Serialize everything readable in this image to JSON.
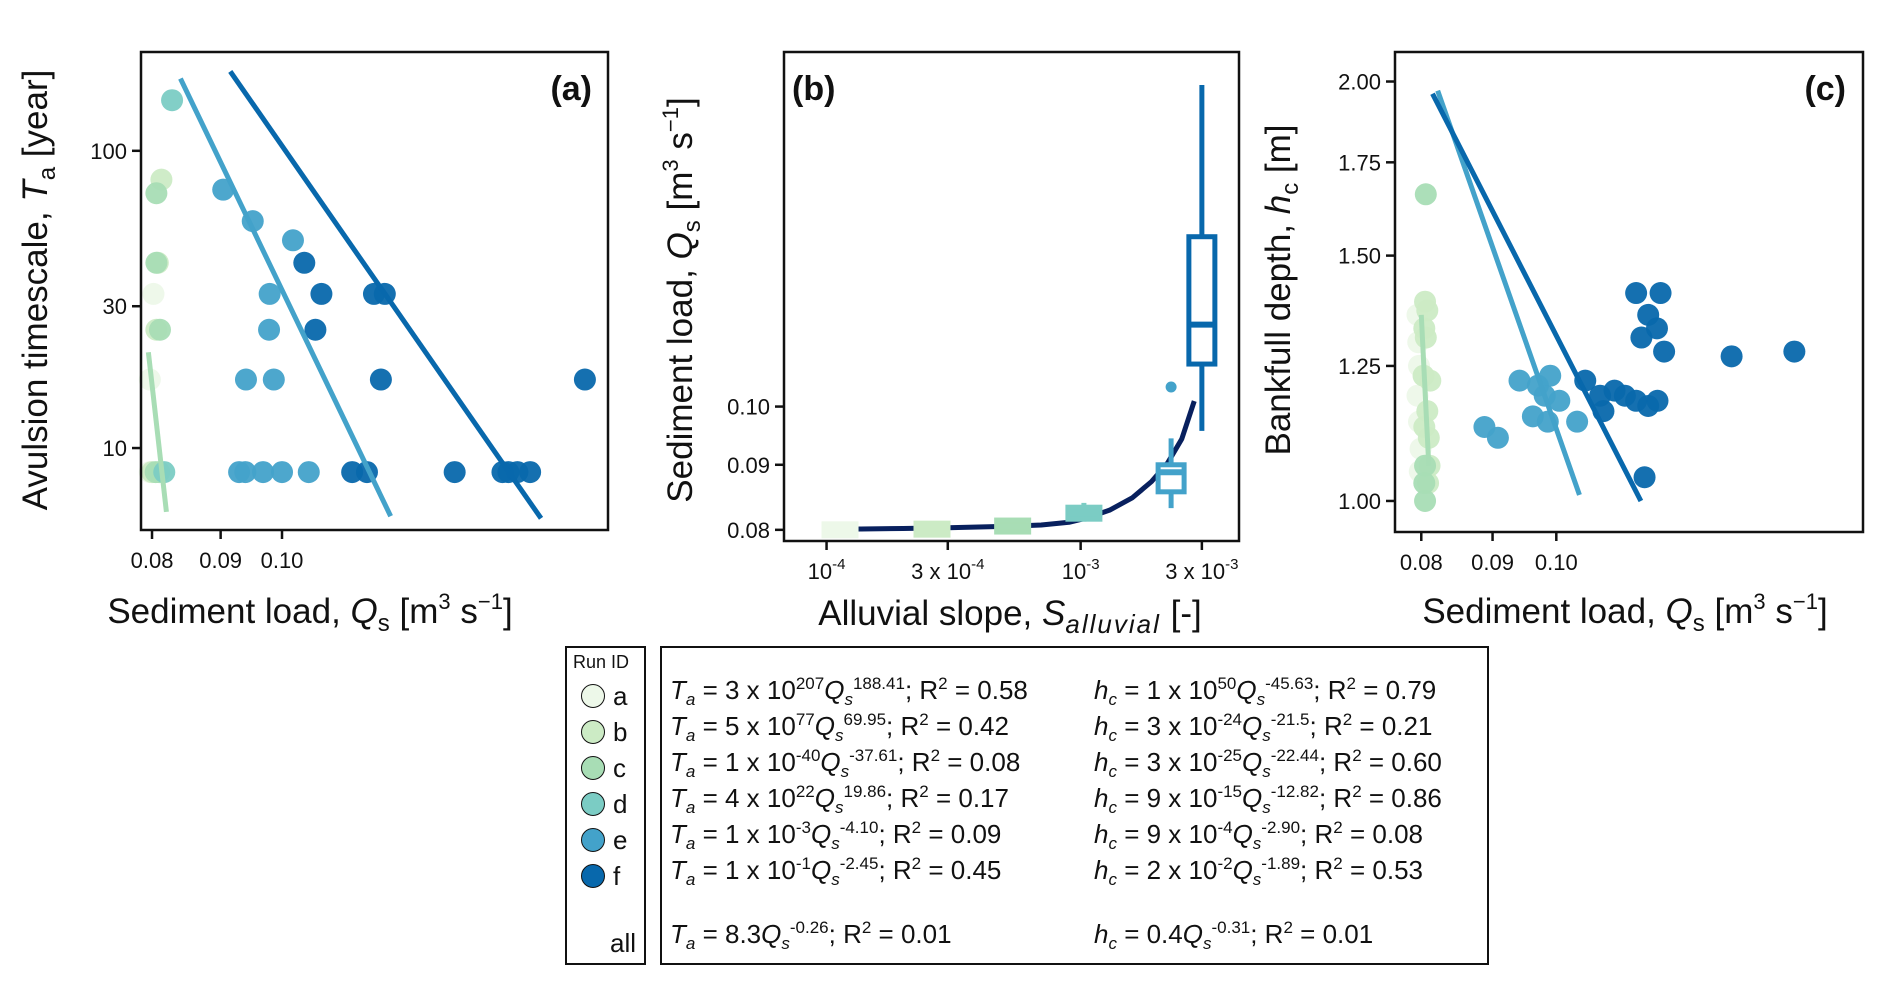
{
  "run_colors": {
    "a": "#edf8e9",
    "b": "#ccebc5",
    "c": "#a8ddb5",
    "d": "#7bccc4",
    "e": "#43a2ca",
    "f": "#0868ac",
    "fit_all": "#08205e"
  },
  "legend": {
    "title": "Run ID",
    "runs": [
      "a",
      "b",
      "c",
      "d",
      "e",
      "f"
    ],
    "all_label": "all"
  },
  "equations": {
    "Ta": [
      {
        "run": "a",
        "lhs": "T",
        "lhs_sub": "a",
        "coef": "3 x 10",
        "coef_exp": "207",
        "exp": "188.41",
        "r2": "0.58"
      },
      {
        "run": "b",
        "lhs": "T",
        "lhs_sub": "a",
        "coef": "5 x 10",
        "coef_exp": "77",
        "exp": "69.95",
        "r2": "0.42"
      },
      {
        "run": "c",
        "lhs": "T",
        "lhs_sub": "a",
        "coef": "1 x 10",
        "coef_exp": "-40",
        "exp": "-37.61",
        "r2": "0.08"
      },
      {
        "run": "d",
        "lhs": "T",
        "lhs_sub": "a",
        "coef": "4 x 10",
        "coef_exp": "22",
        "exp": "19.86",
        "r2": "0.17"
      },
      {
        "run": "e",
        "lhs": "T",
        "lhs_sub": "a",
        "coef": "1 x 10",
        "coef_exp": "-3",
        "exp": "-4.10",
        "r2": "0.09"
      },
      {
        "run": "f",
        "lhs": "T",
        "lhs_sub": "a",
        "coef": "1 x 10",
        "coef_exp": "-1",
        "exp": "-2.45",
        "r2": "0.45"
      },
      {
        "run": "all",
        "lhs": "T",
        "lhs_sub": "a",
        "coef": "8.3",
        "coef_exp": "",
        "exp": "-0.26",
        "r2": "0.01"
      }
    ],
    "hc": [
      {
        "run": "a",
        "lhs": "h",
        "lhs_sub": "c",
        "coef": "1 x 10",
        "coef_exp": "50",
        "exp": "-45.63",
        "r2": "0.79"
      },
      {
        "run": "b",
        "lhs": "h",
        "lhs_sub": "c",
        "coef": "3 x 10",
        "coef_exp": "-24",
        "exp": "-21.5",
        "r2": "0.21"
      },
      {
        "run": "c",
        "lhs": "h",
        "lhs_sub": "c",
        "coef": "3 x 10",
        "coef_exp": "-25",
        "exp": "-22.44",
        "r2": "0.60"
      },
      {
        "run": "d",
        "lhs": "h",
        "lhs_sub": "c",
        "coef": "9 x 10",
        "coef_exp": "-15",
        "exp": "-12.82",
        "r2": "0.86"
      },
      {
        "run": "e",
        "lhs": "h",
        "lhs_sub": "c",
        "coef": "9 x 10",
        "coef_exp": "-4",
        "exp": "-2.90",
        "r2": "0.08"
      },
      {
        "run": "f",
        "lhs": "h",
        "lhs_sub": "c",
        "coef": "2 x 10",
        "coef_exp": "-2",
        "exp": "-1.89",
        "r2": "0.53"
      },
      {
        "run": "all",
        "lhs": "h",
        "lhs_sub": "c",
        "coef": "0.4",
        "coef_exp": "",
        "exp": "-0.31",
        "r2": "0.01"
      }
    ],
    "q_symbol": "Q",
    "q_sub": "s",
    "r2_label": "R",
    "r2_exp": "2"
  },
  "chart_data": [
    {
      "panel": "(a)",
      "type": "scatter",
      "xlabel": "Sediment load, Q_s [m^3 s^-1]",
      "ylabel": "Avulsion timescale, T_a [year]",
      "xscale": "log",
      "yscale": "log",
      "xlim": [
        0.0785,
        0.175
      ],
      "ylim": [
        5.3,
        215
      ],
      "xticks": [
        0.08,
        0.09,
        0.1
      ],
      "xticklabels": [
        "0.08",
        "0.09",
        "0.10"
      ],
      "yticks": [
        10,
        30,
        100
      ],
      "yticklabels": [
        "10",
        "30",
        "100"
      ],
      "points": [
        {
          "run": "a",
          "x": 0.0802,
          "y": 33
        },
        {
          "run": "a",
          "x": 0.0797,
          "y": 17
        },
        {
          "run": "a",
          "x": 0.0797,
          "y": 8.3
        },
        {
          "run": "b",
          "x": 0.0813,
          "y": 80
        },
        {
          "run": "b",
          "x": 0.0806,
          "y": 25
        },
        {
          "run": "b",
          "x": 0.08,
          "y": 8.3
        },
        {
          "run": "b",
          "x": 0.0808,
          "y": 42
        },
        {
          "run": "c",
          "x": 0.0806,
          "y": 72
        },
        {
          "run": "c",
          "x": 0.0806,
          "y": 42
        },
        {
          "run": "c",
          "x": 0.0811,
          "y": 25
        },
        {
          "run": "c",
          "x": 0.0805,
          "y": 8.3
        },
        {
          "run": "c",
          "x": 0.081,
          "y": 8.3
        },
        {
          "run": "d",
          "x": 0.0828,
          "y": 148
        },
        {
          "run": "d",
          "x": 0.0817,
          "y": 8.3
        },
        {
          "run": "e",
          "x": 0.0904,
          "y": 74
        },
        {
          "run": "e",
          "x": 0.0951,
          "y": 58
        },
        {
          "run": "e",
          "x": 0.1019,
          "y": 50
        },
        {
          "run": "e",
          "x": 0.0979,
          "y": 33
        },
        {
          "run": "e",
          "x": 0.0978,
          "y": 25
        },
        {
          "run": "e",
          "x": 0.094,
          "y": 17
        },
        {
          "run": "e",
          "x": 0.0986,
          "y": 17
        },
        {
          "run": "e",
          "x": 0.0929,
          "y": 8.3
        },
        {
          "run": "e",
          "x": 0.0939,
          "y": 8.3
        },
        {
          "run": "e",
          "x": 0.0968,
          "y": 8.3
        },
        {
          "run": "e",
          "x": 0.1,
          "y": 8.3
        },
        {
          "run": "e",
          "x": 0.1047,
          "y": 8.3
        },
        {
          "run": "f",
          "x": 0.1039,
          "y": 42
        },
        {
          "run": "f",
          "x": 0.107,
          "y": 33
        },
        {
          "run": "f",
          "x": 0.1171,
          "y": 33
        },
        {
          "run": "f",
          "x": 0.1193,
          "y": 33
        },
        {
          "run": "f",
          "x": 0.1059,
          "y": 25
        },
        {
          "run": "f",
          "x": 0.1185,
          "y": 17
        },
        {
          "run": "f",
          "x": 0.1682,
          "y": 17
        },
        {
          "run": "f",
          "x": 0.1128,
          "y": 8.3
        },
        {
          "run": "f",
          "x": 0.1157,
          "y": 8.3
        },
        {
          "run": "f",
          "x": 0.1345,
          "y": 8.3
        },
        {
          "run": "f",
          "x": 0.146,
          "y": 8.3
        },
        {
          "run": "f",
          "x": 0.1475,
          "y": 8.3
        },
        {
          "run": "f",
          "x": 0.1498,
          "y": 8.3
        },
        {
          "run": "f",
          "x": 0.1531,
          "y": 8.3
        }
      ],
      "fit_lines": [
        {
          "run": "c",
          "x": [
            0.0795,
            0.082
          ],
          "y": [
            21,
            6.1
          ]
        },
        {
          "run": "e",
          "x": [
            0.084,
            0.1205
          ],
          "y": [
            175,
            5.9
          ]
        },
        {
          "run": "f",
          "x": [
            0.0915,
            0.156
          ],
          "y": [
            185,
            5.8
          ]
        }
      ]
    },
    {
      "panel": "(b)",
      "type": "box",
      "xlabel": "Alluvial slope, S_alluvial [-]",
      "ylabel": "Sediment load, Q_s [m^3 s^-1]",
      "xscale": "log",
      "yscale": "log",
      "xlim": [
        6.8e-05,
        0.0042
      ],
      "ylim": [
        0.0784,
        0.19
      ],
      "xticks": [
        0.0001,
        0.0003,
        0.001,
        0.003
      ],
      "xticklabels": [
        [
          "10",
          "-4"
        ],
        [
          "3 x 10",
          "-4"
        ],
        [
          "10",
          "-3"
        ],
        [
          "3 x 10",
          "-3"
        ]
      ],
      "yticks": [
        0.08,
        0.09,
        0.1
      ],
      "yticklabels": [
        "0.08",
        "0.09",
        "0.10"
      ],
      "boxes": [
        {
          "run": "a",
          "x": 0.000113,
          "wlo": 0.0798,
          "q1": 0.0798,
          "med": 0.08,
          "q3": 0.0802,
          "whi": 0.0802
        },
        {
          "run": "b",
          "x": 0.00026,
          "wlo": 0.0799,
          "q1": 0.0799,
          "med": 0.0801,
          "q3": 0.0803,
          "whi": 0.0804
        },
        {
          "run": "c",
          "x": 0.00054,
          "wlo": 0.0802,
          "q1": 0.0802,
          "med": 0.0805,
          "q3": 0.0809,
          "whi": 0.081
        },
        {
          "run": "d",
          "x": 0.00103,
          "wlo": 0.0812,
          "q1": 0.0818,
          "med": 0.0824,
          "q3": 0.0831,
          "whi": 0.084
        },
        {
          "run": "e",
          "x": 0.00227,
          "wlo": 0.0832,
          "q1": 0.0857,
          "med": 0.0888,
          "q3": 0.09,
          "whi": 0.0944,
          "outliers": [
            0.1036
          ]
        },
        {
          "run": "f",
          "x": 0.003,
          "wlo": 0.0957,
          "q1": 0.108,
          "med": 0.116,
          "q3": 0.136,
          "whi": 0.179
        }
      ],
      "fit_curve": {
        "x": [
          0.000125,
          0.0002,
          0.0003,
          0.0005,
          0.0007,
          0.0009,
          0.00105,
          0.0013,
          0.0016,
          0.0019,
          0.0022,
          0.0025,
          0.0028
        ],
        "y": [
          0.0801,
          0.0802,
          0.0803,
          0.0805,
          0.0807,
          0.0811,
          0.0817,
          0.0829,
          0.0848,
          0.0873,
          0.0903,
          0.0943,
          0.101
        ]
      }
    },
    {
      "panel": "(c)",
      "type": "scatter",
      "xlabel": "Sediment load, Q_s [m^3 s^-1]",
      "ylabel": "Bankfull depth, h_c [m]",
      "xscale": "log",
      "yscale": "log",
      "xlim": [
        0.0766,
        0.166
      ],
      "ylim": [
        0.95,
        2.1
      ],
      "xticks": [
        0.08,
        0.09,
        0.1
      ],
      "xticklabels": [
        "0.08",
        "0.09",
        "0.10"
      ],
      "yticks": [
        1.0,
        1.25,
        1.5,
        1.75,
        2.0
      ],
      "yticklabels": [
        "1.00",
        "1.25",
        "1.50",
        "1.75",
        "2.00"
      ],
      "points": [
        {
          "run": "a",
          "x": 0.0795,
          "y": 1.36
        },
        {
          "run": "a",
          "x": 0.0796,
          "y": 1.3
        },
        {
          "run": "a",
          "x": 0.0797,
          "y": 1.25
        },
        {
          "run": "a",
          "x": 0.0795,
          "y": 1.19
        },
        {
          "run": "a",
          "x": 0.0797,
          "y": 1.14
        },
        {
          "run": "a",
          "x": 0.0799,
          "y": 1.09
        },
        {
          "run": "a",
          "x": 0.0798,
          "y": 1.05
        },
        {
          "run": "b",
          "x": 0.0805,
          "y": 1.39
        },
        {
          "run": "b",
          "x": 0.0808,
          "y": 1.37
        },
        {
          "run": "b",
          "x": 0.0804,
          "y": 1.33
        },
        {
          "run": "b",
          "x": 0.0806,
          "y": 1.31
        },
        {
          "run": "b",
          "x": 0.0812,
          "y": 1.22
        },
        {
          "run": "b",
          "x": 0.0803,
          "y": 1.23
        },
        {
          "run": "b",
          "x": 0.0808,
          "y": 1.16
        },
        {
          "run": "b",
          "x": 0.081,
          "y": 1.11
        },
        {
          "run": "b",
          "x": 0.0804,
          "y": 1.13
        },
        {
          "run": "b",
          "x": 0.0811,
          "y": 1.06
        },
        {
          "run": "b",
          "x": 0.0809,
          "y": 1.03
        },
        {
          "run": "c",
          "x": 0.0806,
          "y": 1.66
        },
        {
          "run": "c",
          "x": 0.0805,
          "y": 1.06
        },
        {
          "run": "c",
          "x": 0.0804,
          "y": 1.03
        },
        {
          "run": "c",
          "x": 0.0805,
          "y": 1.0
        },
        {
          "run": "e",
          "x": 0.0941,
          "y": 1.22
        },
        {
          "run": "e",
          "x": 0.099,
          "y": 1.23
        },
        {
          "run": "e",
          "x": 0.1005,
          "y": 1.18
        },
        {
          "run": "e",
          "x": 0.0962,
          "y": 1.15
        },
        {
          "run": "e",
          "x": 0.0986,
          "y": 1.14
        },
        {
          "run": "e",
          "x": 0.1035,
          "y": 1.14
        },
        {
          "run": "e",
          "x": 0.0888,
          "y": 1.13
        },
        {
          "run": "e",
          "x": 0.0908,
          "y": 1.11
        },
        {
          "run": "e",
          "x": 0.0981,
          "y": 1.19
        },
        {
          "run": "e",
          "x": 0.097,
          "y": 1.21
        },
        {
          "run": "f",
          "x": 0.1141,
          "y": 1.41
        },
        {
          "run": "f",
          "x": 0.1188,
          "y": 1.41
        },
        {
          "run": "f",
          "x": 0.1164,
          "y": 1.36
        },
        {
          "run": "f",
          "x": 0.1181,
          "y": 1.33
        },
        {
          "run": "f",
          "x": 0.1151,
          "y": 1.31
        },
        {
          "run": "f",
          "x": 0.1195,
          "y": 1.28
        },
        {
          "run": "f",
          "x": 0.1336,
          "y": 1.27
        },
        {
          "run": "f",
          "x": 0.1482,
          "y": 1.28
        },
        {
          "run": "f",
          "x": 0.1157,
          "y": 1.04
        },
        {
          "run": "f",
          "x": 0.1049,
          "y": 1.22
        },
        {
          "run": "f",
          "x": 0.1101,
          "y": 1.2
        },
        {
          "run": "f",
          "x": 0.1075,
          "y": 1.19
        },
        {
          "run": "f",
          "x": 0.112,
          "y": 1.19
        },
        {
          "run": "f",
          "x": 0.1081,
          "y": 1.16
        },
        {
          "run": "f",
          "x": 0.1164,
          "y": 1.17
        },
        {
          "run": "f",
          "x": 0.1182,
          "y": 1.18
        },
        {
          "run": "f",
          "x": 0.1141,
          "y": 1.18
        }
      ],
      "fit_lines": [
        {
          "run": "c",
          "x": [
            0.08,
            0.081
          ],
          "y": [
            1.36,
            1.06
          ]
        },
        {
          "run": "e",
          "x": [
            0.0822,
            0.1039
          ],
          "y": [
            1.97,
            1.01
          ]
        },
        {
          "run": "f",
          "x": [
            0.0815,
            0.115
          ],
          "y": [
            1.96,
            1.0
          ]
        }
      ]
    }
  ],
  "panels": {
    "a": {
      "tag": "(a)"
    },
    "b": {
      "tag": "(b)"
    },
    "c": {
      "tag": "(c)"
    }
  }
}
